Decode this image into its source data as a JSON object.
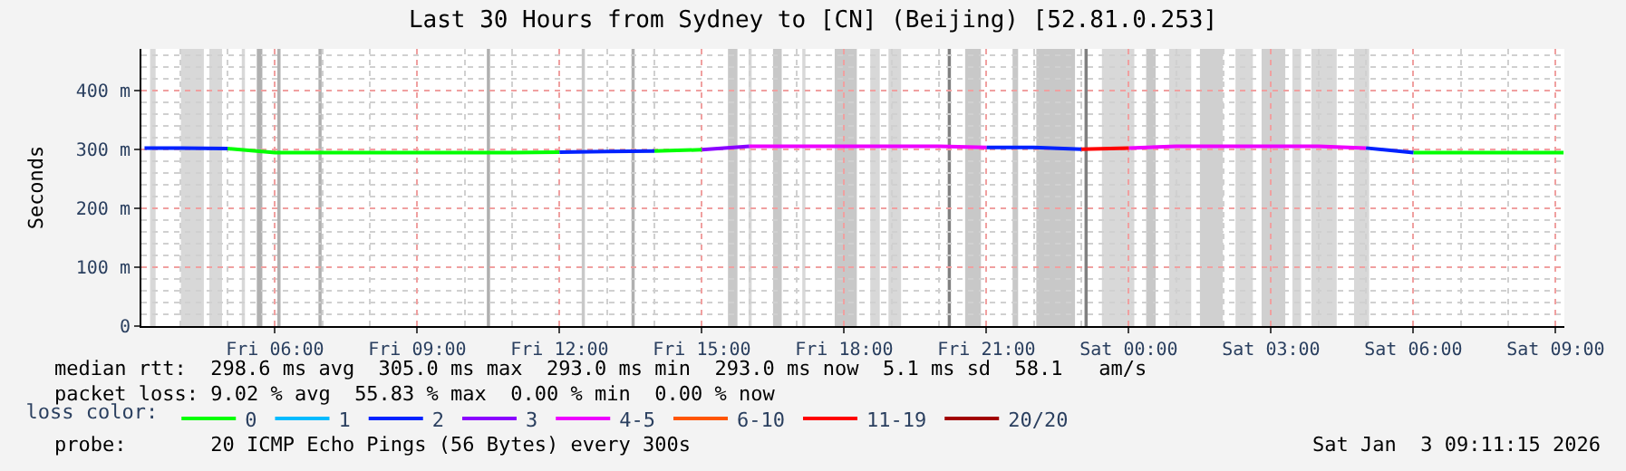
{
  "chart_data": {
    "type": "line",
    "title": "Last 30 Hours from Sydney to [CN] (Beijing) [52.81.0.253]",
    "ylabel": "Seconds",
    "legend_title": "loss color:",
    "legend": "bottom",
    "grid": true,
    "line_style": "solid",
    "marker": "none",
    "x": [
      "2026-01-02T03:15",
      "2026-01-02T04:00",
      "2026-01-02T05:00",
      "2026-01-02T06:00",
      "2026-01-02T07:00",
      "2026-01-02T08:00",
      "2026-01-02T09:00",
      "2026-01-02T10:00",
      "2026-01-02T11:00",
      "2026-01-02T12:00",
      "2026-01-02T13:00",
      "2026-01-02T14:00",
      "2026-01-02T15:00",
      "2026-01-02T16:00",
      "2026-01-02T17:00",
      "2026-01-02T18:00",
      "2026-01-02T19:00",
      "2026-01-02T20:00",
      "2026-01-02T21:00",
      "2026-01-02T22:00",
      "2026-01-02T23:00",
      "2026-01-03T00:00",
      "2026-01-03T01:00",
      "2026-01-03T02:00",
      "2026-01-03T03:00",
      "2026-01-03T04:00",
      "2026-01-03T05:00",
      "2026-01-03T06:00",
      "2026-01-03T07:00",
      "2026-01-03T08:00",
      "2026-01-03T09:00",
      "2026-01-03T09:10"
    ],
    "series": [
      {
        "name": "0",
        "color": "#00ff00",
        "values": [
          null,
          null,
          301,
          294,
          294,
          294,
          294,
          294,
          294,
          295,
          null,
          297,
          299,
          null,
          null,
          null,
          null,
          null,
          null,
          null,
          null,
          null,
          null,
          null,
          null,
          null,
          null,
          294,
          294,
          294,
          294,
          294
        ]
      },
      {
        "name": "1",
        "color": "#00bbff",
        "values": [
          null,
          null,
          null,
          null,
          null,
          null,
          null,
          null,
          null,
          null,
          null,
          null,
          null,
          null,
          null,
          null,
          null,
          null,
          null,
          null,
          null,
          null,
          null,
          null,
          null,
          null,
          null,
          null,
          null,
          null,
          null,
          null
        ]
      },
      {
        "name": "2",
        "color": "#0022ff",
        "values": [
          302,
          302,
          301,
          null,
          null,
          null,
          null,
          null,
          null,
          295,
          296,
          297,
          null,
          null,
          null,
          null,
          null,
          null,
          303,
          303,
          300,
          null,
          null,
          null,
          null,
          null,
          302,
          294,
          null,
          null,
          null,
          null
        ]
      },
      {
        "name": "3",
        "color": "#8a00ff",
        "values": [
          null,
          null,
          null,
          null,
          null,
          null,
          null,
          null,
          null,
          null,
          null,
          null,
          299,
          305,
          null,
          null,
          null,
          null,
          null,
          null,
          null,
          null,
          null,
          null,
          null,
          null,
          null,
          null,
          null,
          null,
          null,
          null
        ]
      },
      {
        "name": "4-5",
        "color": "#ee00ff",
        "values": [
          null,
          null,
          null,
          null,
          null,
          null,
          null,
          null,
          null,
          null,
          null,
          null,
          null,
          305,
          305,
          305,
          305,
          305,
          303,
          null,
          null,
          302,
          305,
          305,
          305,
          305,
          302,
          null,
          null,
          null,
          null,
          null
        ]
      },
      {
        "name": "6-10",
        "color": "#ff5500",
        "values": [
          null,
          null,
          null,
          null,
          null,
          null,
          null,
          null,
          null,
          null,
          null,
          null,
          null,
          null,
          null,
          null,
          null,
          null,
          null,
          null,
          null,
          null,
          null,
          null,
          null,
          null,
          null,
          null,
          null,
          null,
          null,
          null
        ]
      },
      {
        "name": "11-19",
        "color": "#ff0000",
        "values": [
          null,
          null,
          null,
          null,
          null,
          null,
          null,
          null,
          null,
          null,
          null,
          null,
          null,
          null,
          null,
          null,
          null,
          null,
          null,
          null,
          300,
          302,
          null,
          null,
          null,
          null,
          null,
          null,
          null,
          null,
          null,
          null
        ]
      },
      {
        "name": "20/20",
        "color": "#a10000",
        "values": [
          null,
          null,
          null,
          null,
          null,
          null,
          null,
          null,
          null,
          null,
          null,
          null,
          null,
          null,
          null,
          null,
          null,
          null,
          null,
          null,
          null,
          null,
          null,
          null,
          null,
          null,
          null,
          null,
          null,
          null,
          null,
          null
        ]
      }
    ],
    "xlim": [
      "2026-01-02T03:11",
      "2026-01-03T09:11"
    ],
    "xticks": [
      {
        "value": "2026-01-02T06:00",
        "label": "Fri 06:00"
      },
      {
        "value": "2026-01-02T09:00",
        "label": "Fri 09:00"
      },
      {
        "value": "2026-01-02T12:00",
        "label": "Fri 12:00"
      },
      {
        "value": "2026-01-02T15:00",
        "label": "Fri 15:00"
      },
      {
        "value": "2026-01-02T18:00",
        "label": "Fri 18:00"
      },
      {
        "value": "2026-01-02T21:00",
        "label": "Fri 21:00"
      },
      {
        "value": "2026-01-03T00:00",
        "label": "Sat 00:00"
      },
      {
        "value": "2026-01-03T03:00",
        "label": "Sat 03:00"
      },
      {
        "value": "2026-01-03T06:00",
        "label": "Sat 06:00"
      },
      {
        "value": "2026-01-03T09:00",
        "label": "Sat 09:00"
      }
    ],
    "ylim": [
      0,
      470
    ],
    "yticks": [
      0,
      {
        "value": 100,
        "label": "100 m"
      },
      {
        "value": 200,
        "label": "200 m"
      },
      {
        "value": 300,
        "label": "300 m"
      },
      {
        "value": 400,
        "label": "400 m"
      }
    ],
    "bands": [
      {
        "axis": "x",
        "from": "2026-01-02T03:22",
        "to": "2026-01-02T03:29",
        "color": "#d8d8d8"
      },
      {
        "axis": "x",
        "from": "2026-01-02T04:01",
        "to": "2026-01-02T04:30",
        "color": "#d8d8d8"
      },
      {
        "axis": "x",
        "from": "2026-01-02T04:37",
        "to": "2026-01-02T04:53",
        "color": "#d8d8d8"
      },
      {
        "axis": "x",
        "from": "2026-01-02T05:18",
        "to": "2026-01-02T05:22",
        "color": "#d8d8d8"
      },
      {
        "axis": "x",
        "from": "2026-01-02T05:37",
        "to": "2026-01-02T05:44",
        "color": "#b0b0b0"
      },
      {
        "axis": "x",
        "from": "2026-01-02T06:03",
        "to": "2026-01-02T06:07",
        "color": "#b0b0b0"
      },
      {
        "axis": "x",
        "from": "2026-01-02T06:55",
        "to": "2026-01-02T06:59",
        "color": "#b0b0b0"
      },
      {
        "axis": "x",
        "from": "2026-01-02T10:28",
        "to": "2026-01-02T10:32",
        "color": "#b0b0b0"
      },
      {
        "axis": "x",
        "from": "2026-01-02T12:28",
        "to": "2026-01-02T12:32",
        "color": "#c8c8c8"
      },
      {
        "axis": "x",
        "from": "2026-01-02T13:31",
        "to": "2026-01-02T13:35",
        "color": "#b0b0b0"
      },
      {
        "axis": "x",
        "from": "2026-01-02T15:33",
        "to": "2026-01-02T15:45",
        "color": "#c8c8c8"
      },
      {
        "axis": "x",
        "from": "2026-01-02T15:59",
        "to": "2026-01-02T16:03",
        "color": "#d8d8d8"
      },
      {
        "axis": "x",
        "from": "2026-01-02T16:30",
        "to": "2026-01-02T16:41",
        "color": "#c8c8c8"
      },
      {
        "axis": "x",
        "from": "2026-01-02T17:07",
        "to": "2026-01-02T17:11",
        "color": "#d8d8d8"
      },
      {
        "axis": "x",
        "from": "2026-01-02T17:48",
        "to": "2026-01-02T18:16",
        "color": "#c8c8c8"
      },
      {
        "axis": "x",
        "from": "2026-01-02T18:33",
        "to": "2026-01-02T18:45",
        "color": "#d8d8d8"
      },
      {
        "axis": "x",
        "from": "2026-01-02T18:56",
        "to": "2026-01-02T19:12",
        "color": "#d8d8d8"
      },
      {
        "axis": "x",
        "from": "2026-01-02T20:11",
        "to": "2026-01-02T20:15",
        "color": "#808080"
      },
      {
        "axis": "x",
        "from": "2026-01-02T20:33",
        "to": "2026-01-02T20:53",
        "color": "#c8c8c8"
      },
      {
        "axis": "x",
        "from": "2026-01-02T21:33",
        "to": "2026-01-02T21:40",
        "color": "#c8c8c8"
      },
      {
        "axis": "x",
        "from": "2026-01-02T22:03",
        "to": "2026-01-02T22:52",
        "color": "#c8c8c8"
      },
      {
        "axis": "x",
        "from": "2026-01-02T23:04",
        "to": "2026-01-02T23:08",
        "color": "#808080"
      },
      {
        "axis": "x",
        "from": "2026-01-02T23:26",
        "to": "2026-01-03T00:07",
        "color": "#d8d8d8"
      },
      {
        "axis": "x",
        "from": "2026-01-03T00:22",
        "to": "2026-01-03T00:34",
        "color": "#c8c8c8"
      },
      {
        "axis": "x",
        "from": "2026-01-03T00:51",
        "to": "2026-01-03T01:19",
        "color": "#d8d8d8"
      },
      {
        "axis": "x",
        "from": "2026-01-03T01:30",
        "to": "2026-01-03T01:59",
        "color": "#d0d0d0"
      },
      {
        "axis": "x",
        "from": "2026-01-03T02:15",
        "to": "2026-01-03T02:37",
        "color": "#d8d8d8"
      },
      {
        "axis": "x",
        "from": "2026-01-03T02:48",
        "to": "2026-01-03T03:18",
        "color": "#d0d0d0"
      },
      {
        "axis": "x",
        "from": "2026-01-03T03:27",
        "to": "2026-01-03T03:38",
        "color": "#d8d8d8"
      },
      {
        "axis": "x",
        "from": "2026-01-03T03:51",
        "to": "2026-01-03T04:23",
        "color": "#d8d8d8"
      },
      {
        "axis": "x",
        "from": "2026-01-03T04:45",
        "to": "2026-01-03T05:04",
        "color": "#d8d8d8"
      }
    ],
    "annotations": [
      "median rtt:  298.6 ms avg  305.0 ms max  293.0 ms min  293.0 ms now  5.1 ms sd  58.1   am/s",
      "packet loss: 9.02 % avg  55.83 % max  0.00 % min  0.00 % now",
      "probe:       20 ICMP Echo Pings (56 Bytes) every 300s",
      "Sat Jan  3 09:11:15 2026"
    ]
  }
}
